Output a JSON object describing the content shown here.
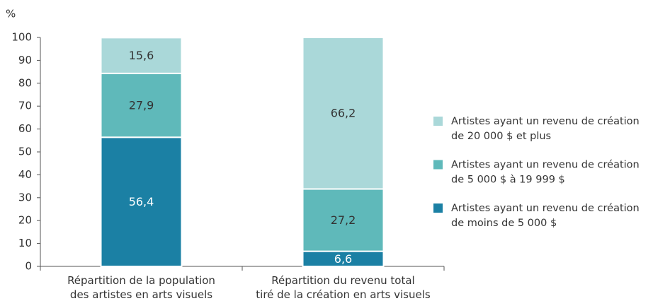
{
  "chart_data": {
    "type": "stacked_bar",
    "y_axis_label": "%",
    "categories": [
      "Répartition de la population\ndes artistes en arts visuels",
      "Répartition du revenu total\ntiré de la création en arts visuels"
    ],
    "series": [
      {
        "name": "Artistes ayant un revenu de création\nde moins de 5 000 $",
        "color": "#1b80a4",
        "values": [
          56.4,
          6.6
        ],
        "value_labels": [
          "56,4",
          "6,6"
        ]
      },
      {
        "name": "Artistes ayant un revenu de création\nde 5 000 $ à 19 999 $",
        "color": "#5fb9ba",
        "values": [
          27.9,
          27.2
        ],
        "value_labels": [
          "27,9",
          "27,2"
        ]
      },
      {
        "name": "Artistes ayant un revenu de création\nde 20 000 $ et plus",
        "color": "#aad8d9",
        "values": [
          15.6,
          66.2
        ],
        "value_labels": [
          "15,6",
          "66,2"
        ]
      }
    ],
    "ylim": [
      0,
      100
    ],
    "yticks": [
      0,
      10,
      20,
      30,
      40,
      50,
      60,
      70,
      80,
      90,
      100
    ],
    "grid": false,
    "legend": "right"
  }
}
